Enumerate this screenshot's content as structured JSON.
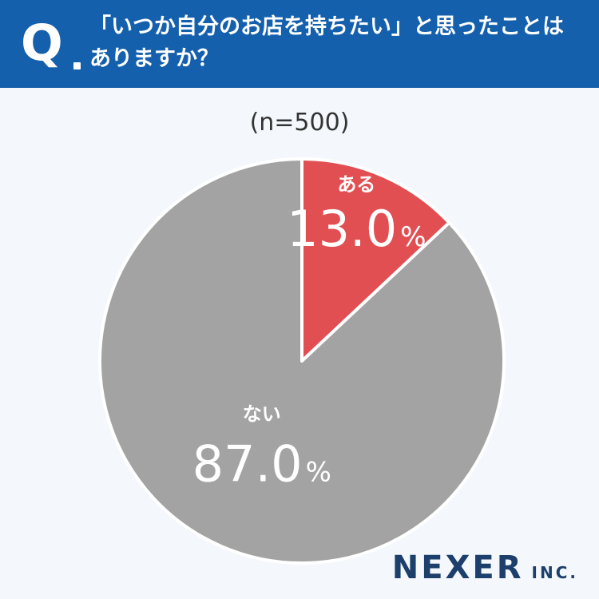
{
  "header": {
    "q_mark": "Q",
    "question_line1": "「いつか自分のお店を持ちたい」と思ったことは",
    "question_line2": "ありますか？"
  },
  "sample": "(n=500)",
  "brand": {
    "name": "NEXER",
    "suffix": "INC."
  },
  "chart_data": {
    "type": "pie",
    "categories": [
      "ある",
      "ない"
    ],
    "values": [
      13.0,
      87.0
    ],
    "value_labels": [
      "13.0",
      "87.0"
    ],
    "unit": "%",
    "colors": [
      "#e24f52",
      "#a3a3a3"
    ],
    "start_angle": "12 o'clock",
    "direction": "clockwise"
  }
}
